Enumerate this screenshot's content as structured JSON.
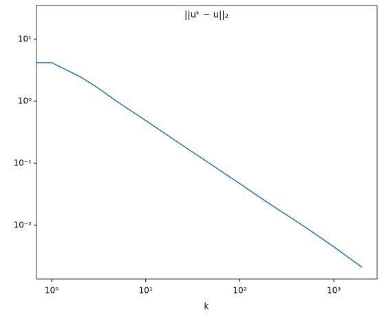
{
  "chart_data": {
    "type": "line",
    "title": "||uᵏ − u||₂",
    "x_label": "k",
    "x": [
      0,
      1,
      2,
      3,
      5,
      10,
      20,
      50,
      100,
      200,
      500,
      1000,
      2000
    ],
    "series": [
      {
        "color": "#1f77b4",
        "values": [
          4.2,
          4.2,
          2.5,
          1.7,
          0.98,
          0.49,
          0.24,
          0.095,
          0.047,
          0.023,
          0.0093,
          0.0045,
          0.0021
        ]
      }
    ],
    "xscale": "log",
    "yscale": "log",
    "xlim": [
      0.69,
      2885
    ],
    "ylim": [
      0.00136,
      35
    ],
    "xticks": [
      {
        "value": 1,
        "label": "10⁰"
      },
      {
        "value": 10,
        "label": "10¹"
      },
      {
        "value": 100,
        "label": "10²"
      },
      {
        "value": 1000,
        "label": "10³"
      }
    ],
    "yticks": [
      {
        "value": 0.01,
        "label": "10⁻²"
      },
      {
        "value": 0.1,
        "label": "10⁻¹"
      },
      {
        "value": 1,
        "label": "10⁰"
      },
      {
        "value": 10,
        "label": "10¹"
      }
    ],
    "grid": false
  }
}
